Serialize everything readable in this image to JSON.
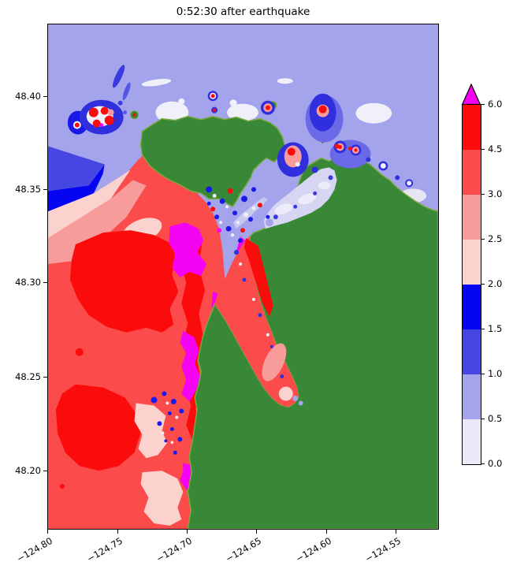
{
  "figure": {
    "title": "0:52:30 after earthquake"
  },
  "chart_data": {
    "type": "heatmap",
    "subtype": "filled-contour-coastal-map",
    "title": "0:52:30 after earthquake",
    "xlabel": "",
    "ylabel": "",
    "x_ticks": [
      "−124.80",
      "−124.75",
      "−124.70",
      "−124.65",
      "−124.60",
      "−124.55"
    ],
    "y_ticks": [
      "48.40",
      "48.35",
      "48.30",
      "48.25",
      "48.20"
    ],
    "xlim": [
      -124.802,
      -124.522
    ],
    "ylim": [
      48.168,
      48.439
    ],
    "x_tick_rotation_deg": 30,
    "grid": false,
    "colorbar": {
      "position": "right",
      "extend": "max",
      "boundaries": [
        0.0,
        0.5,
        1.0,
        1.5,
        2.0,
        2.5,
        3.0,
        4.5,
        6.0
      ],
      "tick_labels_top_to_bottom": [
        "6.0",
        "4.5",
        "3.0",
        "2.5",
        "2.0",
        "1.5",
        "1.0",
        "0.5",
        "0.0"
      ],
      "segment_colors_top_to_bottom": [
        "#FB0C0C",
        "#FB4B4B",
        "#F89B9B",
        "#FBD2CE",
        "#0505F2",
        "#4646E2",
        "#A4A4ED",
        "#E9E9F8"
      ],
      "over_color": "#F504F3",
      "outline_color": "#000000"
    },
    "map_content": {
      "land_color": "#388838",
      "land_edge_color": "#7CA93F",
      "strait_water_amplitude_m": "0.5–1.0",
      "open_ocean_amplitude_m": "3.0–6.0",
      "hotspot_amplitude_m": ">6.0",
      "regions": [
        {
          "name": "strait-water-north",
          "color": "#A4A4ED",
          "meaning": "0.5–1.0 m amplitude"
        },
        {
          "name": "open-ocean-west",
          "color": "#FB4B4B",
          "meaning": "3.0–4.5 m amplitude"
        },
        {
          "name": "high-amplitude-patches",
          "color": "#FB0C0C",
          "meaning": "4.5–6.0 m amplitude"
        },
        {
          "name": "coastal-magenta-hotspots",
          "color": "#F504F3",
          "meaning": "amplitude over 6.0 m"
        },
        {
          "name": "blue-eddies-near-headlands",
          "color": "#0505F2",
          "meaning": "1.5–2.0 m amplitude"
        },
        {
          "name": "calm-patches",
          "color": "#E9E9F8",
          "meaning": "0.0–0.5 m amplitude"
        },
        {
          "name": "mainland-east",
          "color": "#388838",
          "meaning": "land"
        },
        {
          "name": "north-island",
          "color": "#388838",
          "meaning": "land"
        }
      ]
    }
  }
}
